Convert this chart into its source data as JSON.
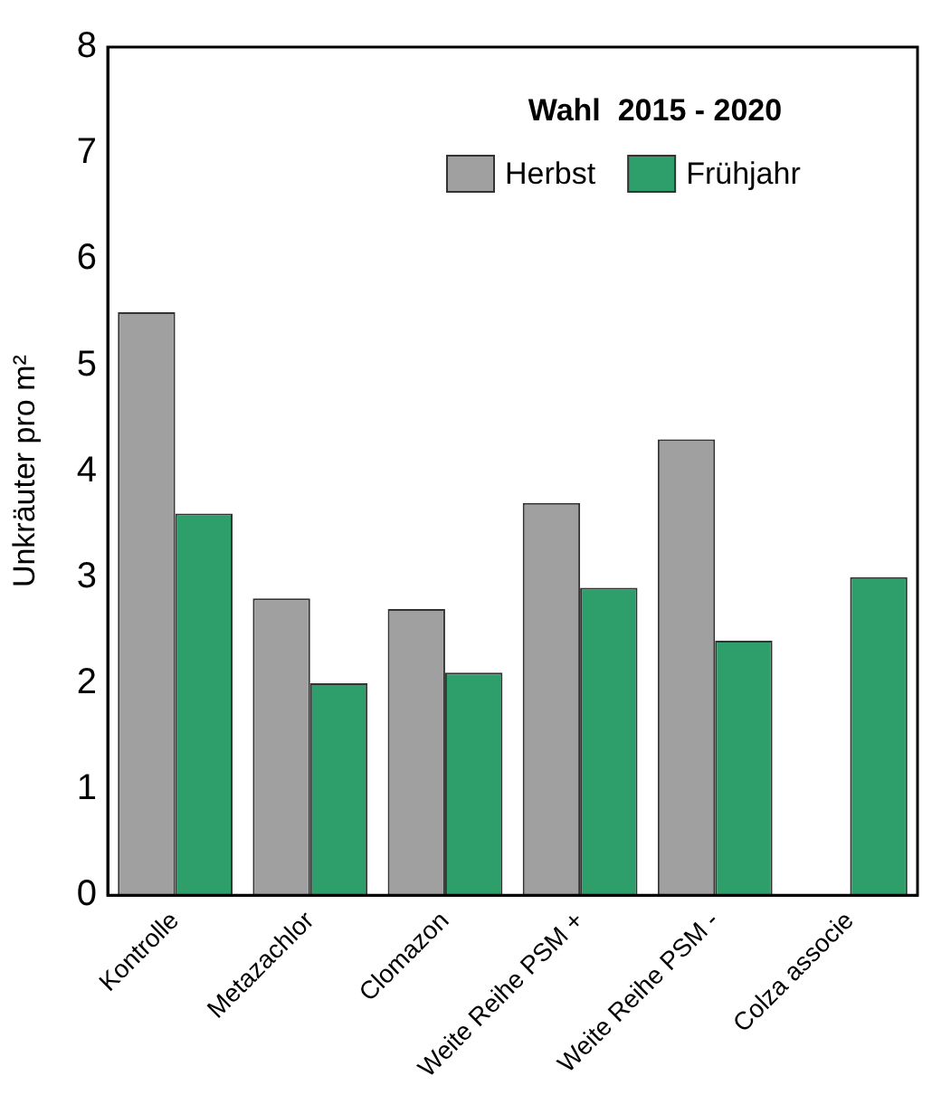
{
  "chart_data": {
    "type": "bar",
    "ylabel": "Unkräuter pro m²",
    "legend_title": "Wahl  2015 - 2020",
    "categories": [
      "Kontrolle",
      "Metazachlor",
      "Clomazon",
      "Weite Reihe PSM +",
      "Weite Reihe PSM -",
      "Colza associe"
    ],
    "series": [
      {
        "name": "Herbst",
        "color": "#a0a0a0",
        "values": [
          5.5,
          2.8,
          2.7,
          3.7,
          4.3,
          null
        ]
      },
      {
        "name": "Frühjahr",
        "color": "#2e9e6b",
        "values": [
          3.6,
          2.0,
          2.1,
          2.9,
          2.4,
          3.0
        ]
      }
    ],
    "ylim": [
      0,
      8
    ],
    "yticks": [
      0,
      1,
      2,
      3,
      4,
      5,
      6,
      7,
      8
    ],
    "grid": false,
    "legend": "top right"
  }
}
